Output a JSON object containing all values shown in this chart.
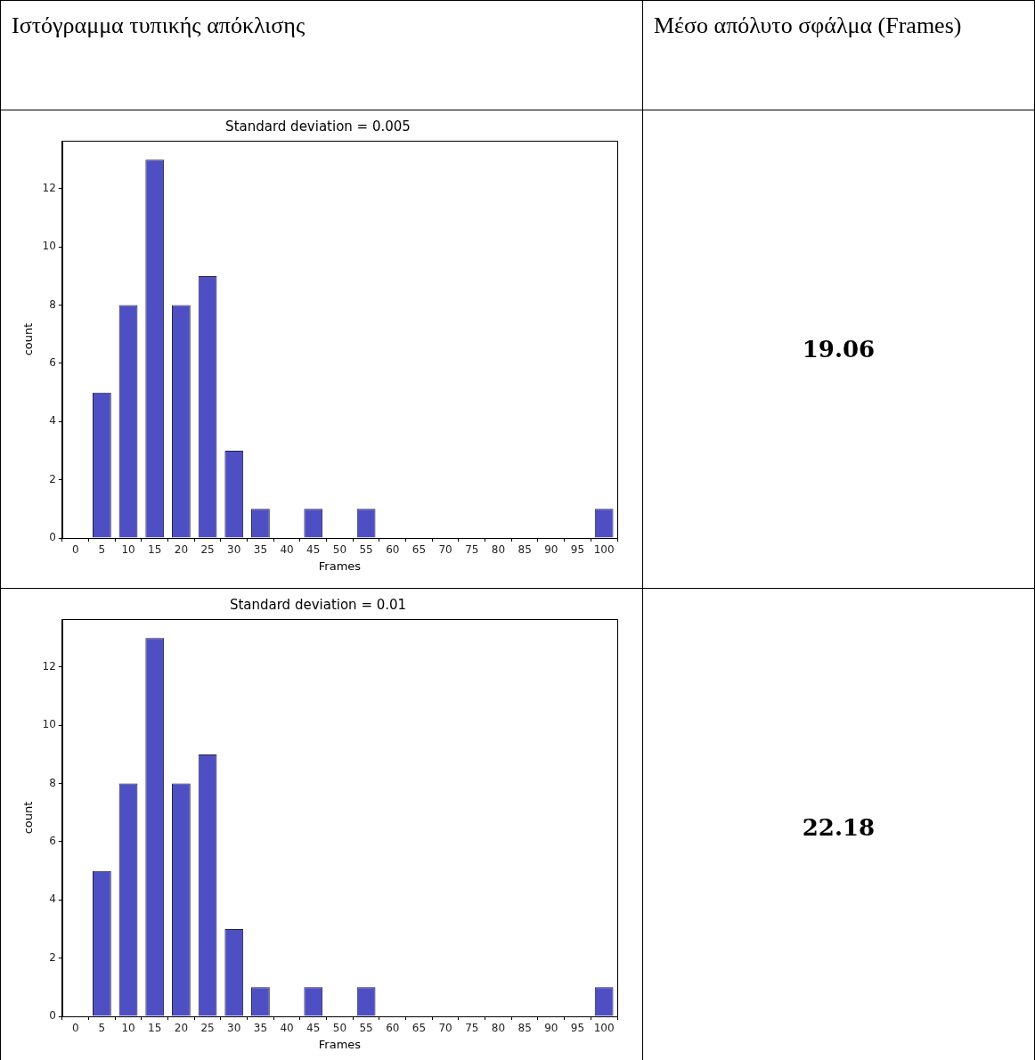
{
  "chart_data": [
    {
      "type": "bar",
      "title": "Standard deviation = 0.005",
      "xlabel": "Frames",
      "ylabel": "count",
      "categories": [
        "0",
        "5",
        "10",
        "15",
        "20",
        "25",
        "30",
        "35",
        "40",
        "45",
        "50",
        "55",
        "60",
        "65",
        "70",
        "75",
        "80",
        "85",
        "90",
        "95",
        "100"
      ],
      "values": [
        0,
        5,
        8,
        13,
        8,
        9,
        3,
        1,
        0,
        1,
        0,
        1,
        0,
        0,
        0,
        0,
        0,
        0,
        0,
        0,
        1
      ],
      "color": "#4f4fc4",
      "ylim": [
        0,
        13.65
      ],
      "yticks": [
        0,
        2,
        4,
        6,
        8,
        10,
        12
      ],
      "grid": false,
      "annotations": [
        "Ιστόγραμμα τυπικής απόκλισης",
        "Μέσο απόλυτο σφάλμα (Frames)",
        "19.06"
      ]
    },
    {
      "type": "bar",
      "title": "Standard deviation = 0.01",
      "xlabel": "Frames",
      "ylabel": "count",
      "categories": [
        "0",
        "5",
        "10",
        "15",
        "20",
        "25",
        "30",
        "35",
        "40",
        "45",
        "50",
        "55",
        "60",
        "65",
        "70",
        "75",
        "80",
        "85",
        "90",
        "95",
        "100"
      ],
      "values": [
        0,
        5,
        8,
        13,
        8,
        9,
        3,
        1,
        0,
        1,
        0,
        1,
        0,
        0,
        0,
        0,
        0,
        0,
        0,
        0,
        1
      ],
      "color": "#4f4fc4",
      "ylim": [
        0,
        13.65
      ],
      "yticks": [
        0,
        2,
        4,
        6,
        8,
        10,
        12
      ],
      "grid": false,
      "annotations": [
        "22.18"
      ]
    }
  ]
}
